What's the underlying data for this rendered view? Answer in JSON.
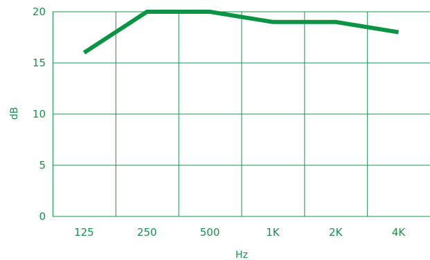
{
  "chart_data": {
    "type": "line",
    "categories": [
      "125",
      "250",
      "500",
      "1K",
      "2K",
      "4K"
    ],
    "series": [
      {
        "values": [
          16,
          20,
          20,
          19,
          19,
          18
        ]
      }
    ],
    "xlabel": "Hz",
    "ylabel": "dB",
    "ylim": [
      0,
      20
    ],
    "yticks": [
      0,
      5,
      10,
      15,
      20
    ],
    "grid": true,
    "colors": {
      "line": "#0b9444",
      "grid": "#1a8f4c",
      "text": "#1a8f4c"
    }
  }
}
